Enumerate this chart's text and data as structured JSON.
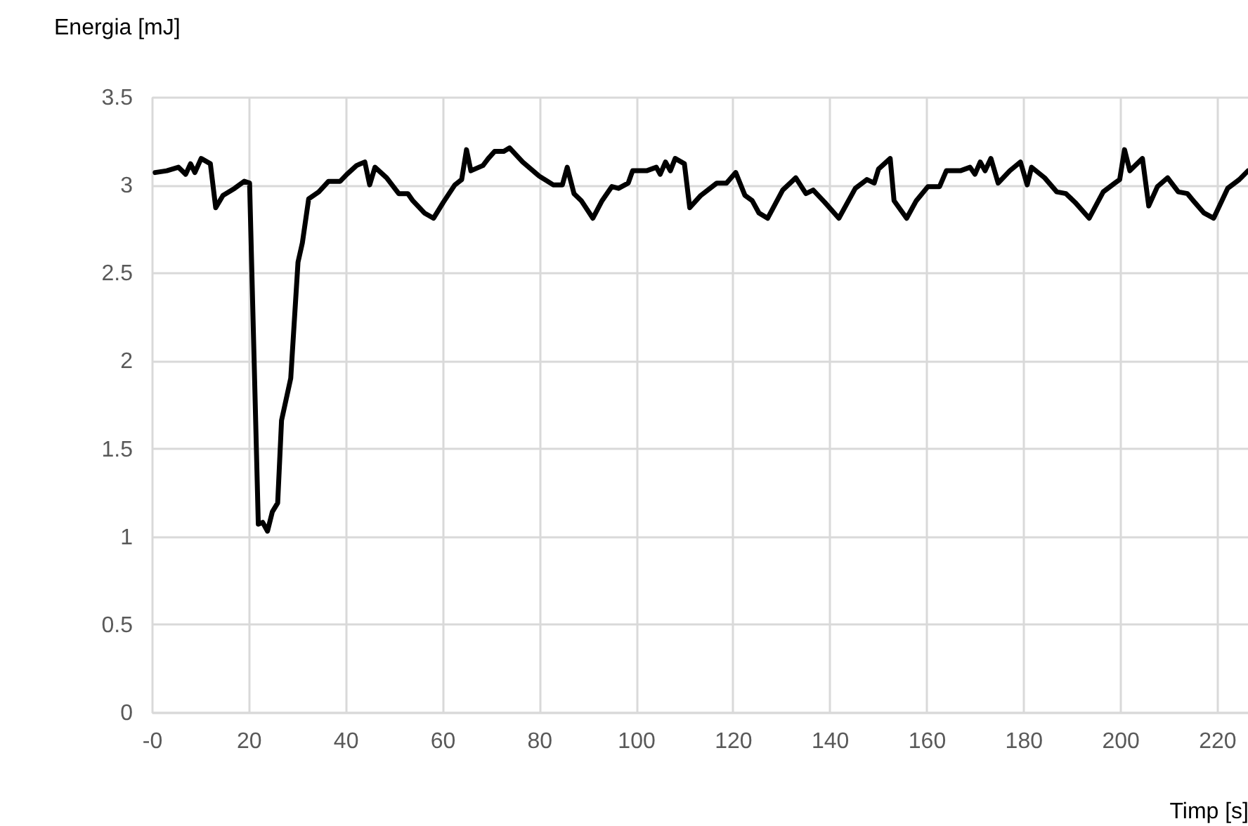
{
  "chart_data": {
    "type": "line",
    "xlabel": "Timp [s]",
    "ylabel": "Energia [mJ]",
    "xlim": [
      0,
      226.4
    ],
    "xticks": [
      {
        "value": 0,
        "label": "-0"
      },
      20,
      40,
      60,
      80,
      100,
      120,
      140,
      160,
      180,
      200,
      220
    ],
    "ylim": [
      0,
      3.5
    ],
    "yticks": [
      0,
      0.5,
      1,
      1.5,
      2,
      2.5,
      3,
      3.5
    ],
    "grid": true,
    "marker": "none",
    "line_style": "solid",
    "x": [
      0.7,
      3.1,
      5.5,
      7,
      8,
      8.9,
      10.2,
      12.1,
      13.2,
      14.7,
      17.1,
      19.1,
      20.2,
      22,
      22.9,
      23.9,
      24.9,
      26,
      26.8,
      28.7,
      30.2,
      31.1,
      32.4,
      34.5,
      36.5,
      38.9,
      40.3,
      42.3,
      44,
      45,
      46.1,
      48.5,
      51,
      52.9,
      53.9,
      56.3,
      58.2,
      60.2,
      62.6,
      64,
      65,
      65.9,
      68.4,
      69.5,
      70.8,
      72.7,
      73.9,
      76.6,
      80,
      82.9,
      84.8,
      85.8,
      87.2,
      88.7,
      91.1,
      93,
      95,
      96.4,
      98.4,
      99.3,
      102.2,
      104.2,
      105,
      106.1,
      107.1,
      108.1,
      110,
      111.1,
      113.4,
      116.7,
      118.7,
      120.6,
      122.5,
      124,
      125.4,
      127.2,
      130.3,
      133,
      135.1,
      136.6,
      139,
      141.9,
      145.3,
      147.7,
      149.2,
      150.1,
      152.5,
      153.3,
      155.9,
      157.9,
      160.3,
      162.7,
      164.1,
      167,
      169,
      170,
      171.1,
      172.1,
      173.3,
      174.8,
      177.2,
      179.4,
      180.8,
      181.7,
      184.4,
      186.9,
      188.8,
      190.7,
      193.6,
      196.5,
      198.9,
      199.9,
      200.9,
      202,
      204.6,
      205.9,
      207.7,
      209.8,
      212,
      213.9,
      215.4,
      217.3,
      219.3,
      222.2,
      224.6,
      226.4
    ],
    "series": [
      {
        "color": "#000000",
        "values": [
          3.07,
          3.08,
          3.1,
          3.06,
          3.12,
          3.07,
          3.15,
          3.12,
          2.87,
          2.94,
          2.98,
          3.02,
          3.01,
          1.07,
          1.08,
          1.03,
          1.14,
          1.19,
          1.66,
          1.9,
          2.56,
          2.67,
          2.92,
          2.96,
          3.02,
          3.02,
          3.06,
          3.11,
          3.13,
          3.0,
          3.1,
          3.04,
          2.95,
          2.95,
          2.91,
          2.84,
          2.81,
          2.9,
          3.0,
          3.03,
          3.2,
          3.08,
          3.11,
          3.15,
          3.19,
          3.19,
          3.21,
          3.13,
          3.05,
          3.0,
          3.0,
          3.1,
          2.95,
          2.91,
          2.81,
          2.91,
          2.99,
          2.98,
          3.01,
          3.08,
          3.08,
          3.1,
          3.06,
          3.13,
          3.08,
          3.15,
          3.12,
          2.87,
          2.94,
          3.01,
          3.01,
          3.07,
          2.94,
          2.91,
          2.84,
          2.81,
          2.97,
          3.04,
          2.95,
          2.97,
          2.9,
          2.81,
          2.98,
          3.03,
          3.01,
          3.09,
          3.15,
          2.91,
          2.81,
          2.91,
          2.99,
          2.99,
          3.08,
          3.08,
          3.1,
          3.06,
          3.13,
          3.08,
          3.15,
          3.01,
          3.08,
          3.13,
          3.0,
          3.1,
          3.04,
          2.96,
          2.95,
          2.9,
          2.81,
          2.96,
          3.01,
          3.03,
          3.2,
          3.08,
          3.15,
          2.88,
          2.99,
          3.04,
          2.96,
          2.95,
          2.9,
          2.84,
          2.81,
          2.98,
          3.03,
          3.08
        ]
      }
    ]
  }
}
